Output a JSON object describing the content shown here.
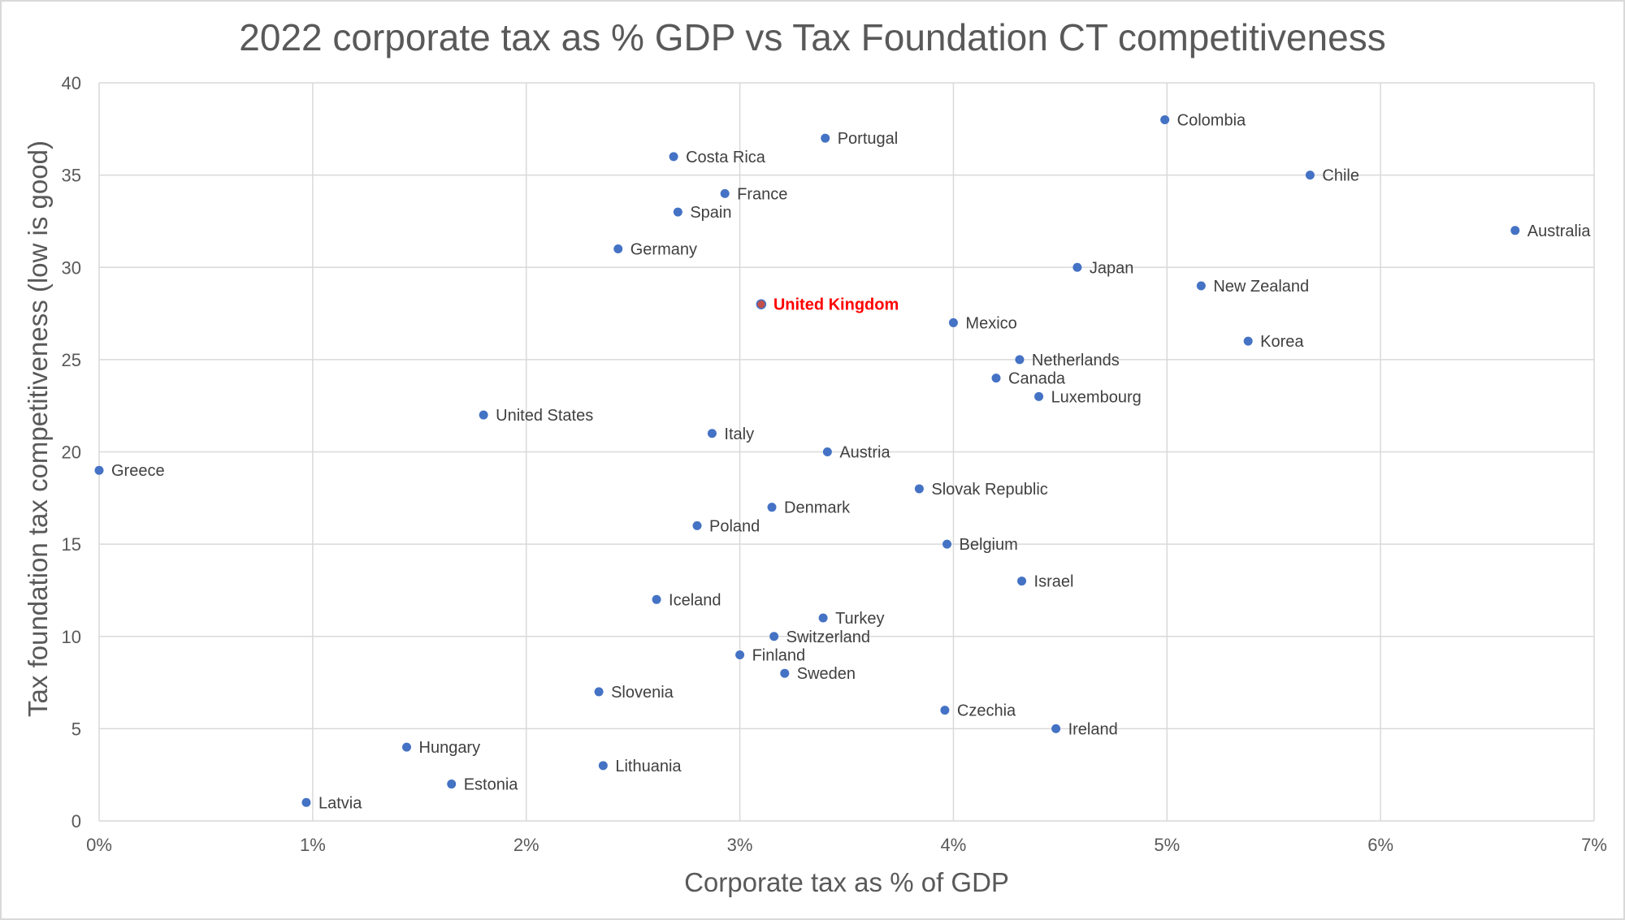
{
  "chart_data": {
    "type": "scatter",
    "title": "2022 corporate tax as % GDP vs Tax Foundation CT competitiveness",
    "xlabel": "Corporate tax as % of GDP",
    "ylabel": "Tax foundation tax competitiveness (low is good)",
    "xlim": [
      0,
      7
    ],
    "ylim": [
      0,
      40
    ],
    "x_ticks": [
      0,
      1,
      2,
      3,
      4,
      5,
      6,
      7
    ],
    "x_tick_labels": [
      "0%",
      "1%",
      "2%",
      "3%",
      "4%",
      "5%",
      "6%",
      "7%"
    ],
    "y_ticks": [
      0,
      5,
      10,
      15,
      20,
      25,
      30,
      35,
      40
    ],
    "y_tick_labels": [
      "0",
      "5",
      "10",
      "15",
      "20",
      "25",
      "30",
      "35",
      "40"
    ],
    "grid": true,
    "point_color": "#4472c4",
    "highlight_color": "#ff0000",
    "points": [
      {
        "label": "Colombia",
        "x": 4.99,
        "y": 38
      },
      {
        "label": "Portugal",
        "x": 3.4,
        "y": 37
      },
      {
        "label": "Costa Rica",
        "x": 2.69,
        "y": 36
      },
      {
        "label": "Chile",
        "x": 5.67,
        "y": 35
      },
      {
        "label": "France",
        "x": 2.93,
        "y": 34
      },
      {
        "label": "Spain",
        "x": 2.71,
        "y": 33
      },
      {
        "label": "Australia",
        "x": 6.63,
        "y": 32
      },
      {
        "label": "Germany",
        "x": 2.43,
        "y": 31
      },
      {
        "label": "Japan",
        "x": 4.58,
        "y": 30
      },
      {
        "label": "New Zealand",
        "x": 5.16,
        "y": 29
      },
      {
        "label": "United Kingdom",
        "x": 3.1,
        "y": 28,
        "highlight": true
      },
      {
        "label": "Mexico",
        "x": 4.0,
        "y": 27
      },
      {
        "label": "Korea",
        "x": 5.38,
        "y": 26
      },
      {
        "label": "Netherlands",
        "x": 4.31,
        "y": 25
      },
      {
        "label": "Canada",
        "x": 4.2,
        "y": 24
      },
      {
        "label": "Luxembourg",
        "x": 4.4,
        "y": 23
      },
      {
        "label": "United States",
        "x": 1.8,
        "y": 22
      },
      {
        "label": "Italy",
        "x": 2.87,
        "y": 21
      },
      {
        "label": "Austria",
        "x": 3.41,
        "y": 20
      },
      {
        "label": "Greece",
        "x": 0.0,
        "y": 19
      },
      {
        "label": "Slovak Republic",
        "x": 3.84,
        "y": 18
      },
      {
        "label": "Denmark",
        "x": 3.15,
        "y": 17
      },
      {
        "label": "Poland",
        "x": 2.8,
        "y": 16
      },
      {
        "label": "Belgium",
        "x": 3.97,
        "y": 15
      },
      {
        "label": "Israel",
        "x": 4.32,
        "y": 13
      },
      {
        "label": "Iceland",
        "x": 2.61,
        "y": 12
      },
      {
        "label": "Turkey",
        "x": 3.39,
        "y": 11
      },
      {
        "label": "Switzerland",
        "x": 3.16,
        "y": 10
      },
      {
        "label": "Finland",
        "x": 3.0,
        "y": 9
      },
      {
        "label": "Sweden",
        "x": 3.21,
        "y": 8
      },
      {
        "label": "Slovenia",
        "x": 2.34,
        "y": 7
      },
      {
        "label": "Czechia",
        "x": 3.96,
        "y": 6
      },
      {
        "label": "Ireland",
        "x": 4.48,
        "y": 5
      },
      {
        "label": "Hungary",
        "x": 1.44,
        "y": 4
      },
      {
        "label": "Lithuania",
        "x": 2.36,
        "y": 3
      },
      {
        "label": "Estonia",
        "x": 1.65,
        "y": 2
      },
      {
        "label": "Latvia",
        "x": 0.97,
        "y": 1
      }
    ]
  }
}
